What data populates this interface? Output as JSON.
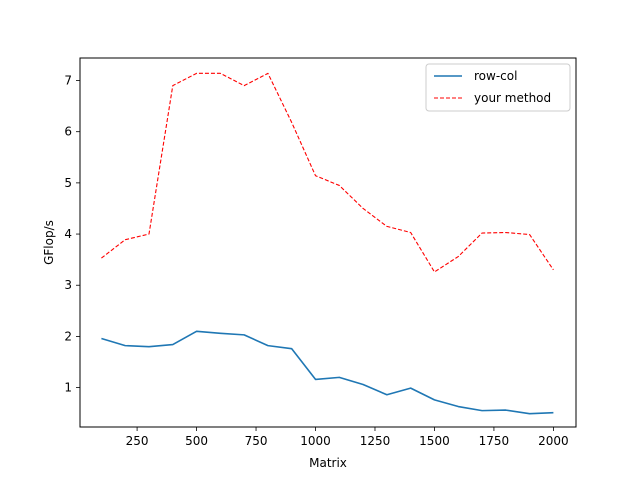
{
  "chart_data": {
    "type": "line",
    "title": "",
    "xlabel": "Matrix",
    "ylabel": "GFlop/s",
    "xlim": [
      10,
      2095
    ],
    "ylim": [
      0.23,
      7.44
    ],
    "xticks": [
      250,
      500,
      750,
      1000,
      1250,
      1500,
      1750,
      2000
    ],
    "yticks": [
      1,
      2,
      3,
      4,
      5,
      6,
      7
    ],
    "grid": false,
    "legend_position": "top-right",
    "x": [
      100,
      200,
      300,
      400,
      500,
      600,
      700,
      800,
      900,
      1000,
      1100,
      1200,
      1300,
      1400,
      1500,
      1600,
      1700,
      1800,
      1900,
      2000
    ],
    "series": [
      {
        "name": "row-col",
        "color": "#1f77b4",
        "style": "solid",
        "values": [
          1.96,
          1.82,
          1.8,
          1.84,
          2.1,
          2.06,
          2.03,
          1.82,
          1.76,
          1.16,
          1.2,
          1.06,
          0.86,
          0.99,
          0.76,
          0.63,
          0.55,
          0.56,
          0.49,
          0.51
        ]
      },
      {
        "name": "your method",
        "color": "#ff0000",
        "style": "dashed",
        "values": [
          3.53,
          3.89,
          4.0,
          6.9,
          7.14,
          7.14,
          6.9,
          7.14,
          6.18,
          5.14,
          4.95,
          4.5,
          4.15,
          4.03,
          3.26,
          3.56,
          4.02,
          4.03,
          3.99,
          3.3
        ]
      }
    ]
  }
}
